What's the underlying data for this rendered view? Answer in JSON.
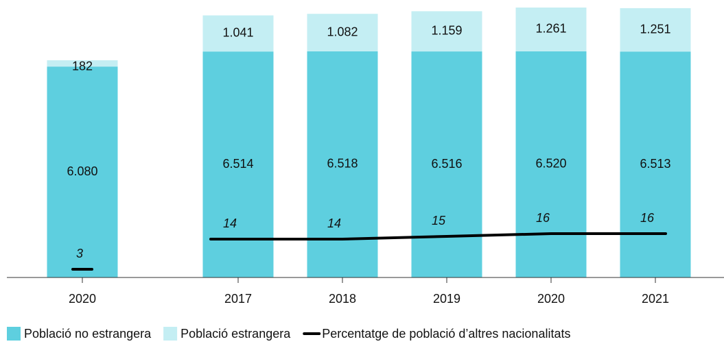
{
  "chart_data": {
    "type": "bar",
    "categories": [
      "2020",
      "2017",
      "2018",
      "2019",
      "2020",
      "2021"
    ],
    "stacked": true,
    "ylim": [
      0,
      7900
    ],
    "y2lim": [
      0,
      100
    ],
    "series": [
      {
        "name": "Població no estrangera",
        "color": "#5ecfdf",
        "values": [
          6080,
          6514,
          6518,
          6516,
          6520,
          6513
        ],
        "value_labels": [
          "6.080",
          "6.514",
          "6.518",
          "6.516",
          "6.520",
          "6.513"
        ]
      },
      {
        "name": "Població estrangera",
        "color": "#c4eef3",
        "values": [
          182,
          1041,
          1082,
          1159,
          1261,
          1251
        ],
        "value_labels": [
          "182",
          "1.041",
          "1.082",
          "1.159",
          "1.261",
          "1.251"
        ]
      },
      {
        "name": "Percentatge de població d’altres nacionalitats",
        "type": "line",
        "axis": "y2",
        "color": "#000000",
        "values": [
          3,
          14,
          14,
          15,
          16,
          16
        ]
      }
    ]
  }
}
